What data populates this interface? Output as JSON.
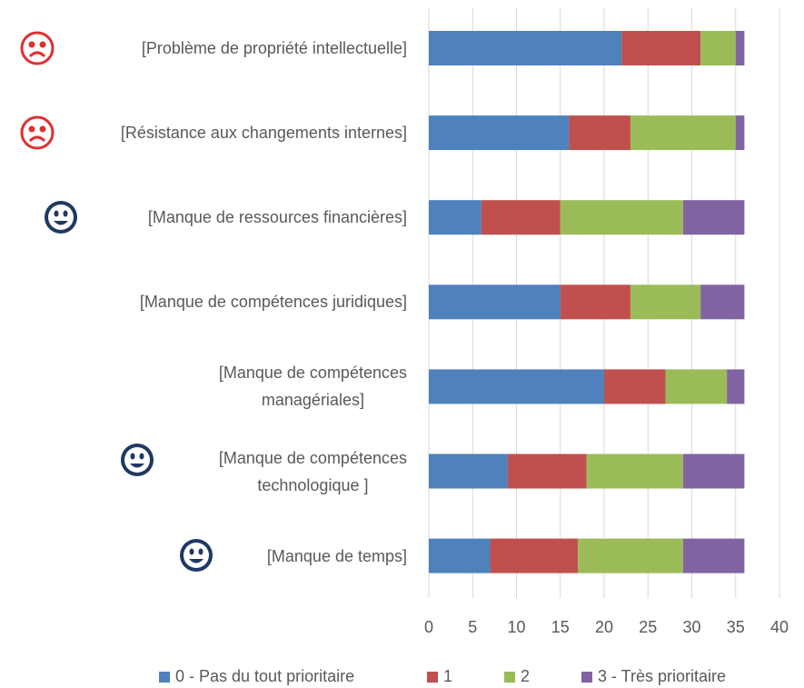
{
  "chart_data": {
    "type": "stacked_barh",
    "categories": [
      "[Problème de propriété intellectuelle]",
      "[Résistance aux changements internes]",
      "[Manque de ressources financières]",
      "[Manque de compétences juridiques]",
      "[Manque de compétences\nmanagériales]",
      "[Manque de compétences\ntechnologique ]",
      "[Manque de temps]"
    ],
    "series": [
      {
        "name": "0 - Pas du tout prioritaire",
        "color": "#4f81bd",
        "values": [
          22,
          16,
          6,
          15,
          20,
          9,
          7
        ]
      },
      {
        "name": "1",
        "color": "#c0504d",
        "values": [
          9,
          7,
          9,
          8,
          7,
          9,
          10
        ]
      },
      {
        "name": "2",
        "color": "#9bbb59",
        "values": [
          4,
          12,
          14,
          8,
          7,
          11,
          12
        ]
      },
      {
        "name": "3 - Très prioritaire",
        "color": "#8064a2",
        "values": [
          1,
          1,
          7,
          5,
          2,
          7,
          7
        ]
      }
    ],
    "xlim": [
      0,
      40
    ],
    "xticks": [
      0,
      5,
      10,
      15,
      20,
      25,
      30,
      35,
      40
    ],
    "grid": true,
    "legend": "bottom"
  }
}
